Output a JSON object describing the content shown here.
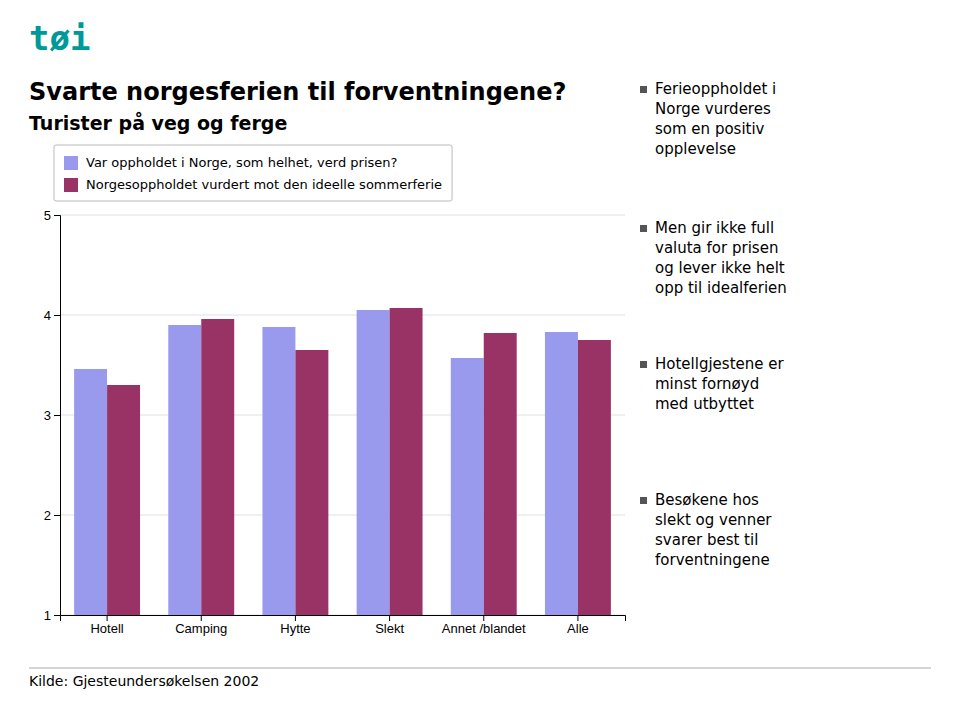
{
  "chart_data": {
    "type": "bar",
    "logo": "tøi",
    "title": "Svarte norgesferien til forventningene?",
    "subtitle": "Turister på veg og ferge",
    "categories": [
      "Hotell",
      "Camping",
      "Hytte",
      "Slekt",
      "Annet /blandet",
      "Alle"
    ],
    "series": [
      {
        "name": "Var oppholdet i Norge, som helhet, verd prisen?",
        "color": "#9999ee",
        "values": [
          3.46,
          3.9,
          3.88,
          4.05,
          3.57,
          3.83
        ]
      },
      {
        "name": "Norgesoppholdet vurdert mot den ideelle sommerferie",
        "color": "#993366",
        "values": [
          3.3,
          3.96,
          3.65,
          4.07,
          3.82,
          3.75
        ]
      }
    ],
    "ylim": [
      1,
      5
    ],
    "yticks": [
      1,
      2,
      3,
      4,
      5
    ],
    "grid": true,
    "legend": "upper left",
    "annotations": [
      "Ferieoppholdet i\nNorge vurderes\nsom en positiv\nopplevelse",
      "Men gir ikke full\nvaluta for prisen\nog lever ikke helt\nopp til idealferien",
      "Hotellgjestene er\nminst fornøyd\nmed utbyttet",
      "Besøkene hos\nslekt og venner\nsvarer best til\nforventningene"
    ],
    "source": "Kilde: Gjesteundersøkelsen 2002"
  }
}
